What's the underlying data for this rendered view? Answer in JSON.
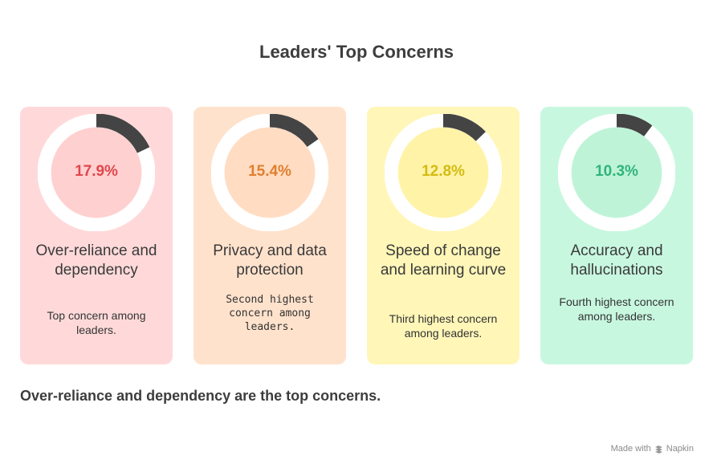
{
  "title": "Leaders' Top Concerns",
  "cards": [
    {
      "percent_label": "17.9%",
      "percent": 17.9,
      "heading": "Over-reliance and dependency",
      "description": "Top concern among leaders.",
      "bg": "#ffd9d9",
      "inner": "#ffd0d0",
      "accent": "#e0474c"
    },
    {
      "percent_label": "15.4%",
      "percent": 15.4,
      "heading": "Privacy and data protection",
      "description": "Second highest concern among leaders.",
      "bg": "#ffe2cc",
      "inner": "#ffdcc2",
      "accent": "#e07f2f"
    },
    {
      "percent_label": "12.8%",
      "percent": 12.8,
      "heading": "Speed of change and learning curve",
      "description": "Third highest concern among leaders.",
      "bg": "#fff6b8",
      "inner": "#fff3a8",
      "accent": "#d4bb12"
    },
    {
      "percent_label": "10.3%",
      "percent": 10.3,
      "heading": "Accuracy and hallucinations",
      "description": "Fourth highest concern among leaders.",
      "bg": "#c8f7e0",
      "inner": "#bff3d8",
      "accent": "#2fb57a"
    }
  ],
  "summary": "Over-reliance and dependency are the top concerns.",
  "credit": {
    "prefix": "Made with",
    "brand": "Napkin",
    "icon": "napkin-logo-icon"
  }
}
